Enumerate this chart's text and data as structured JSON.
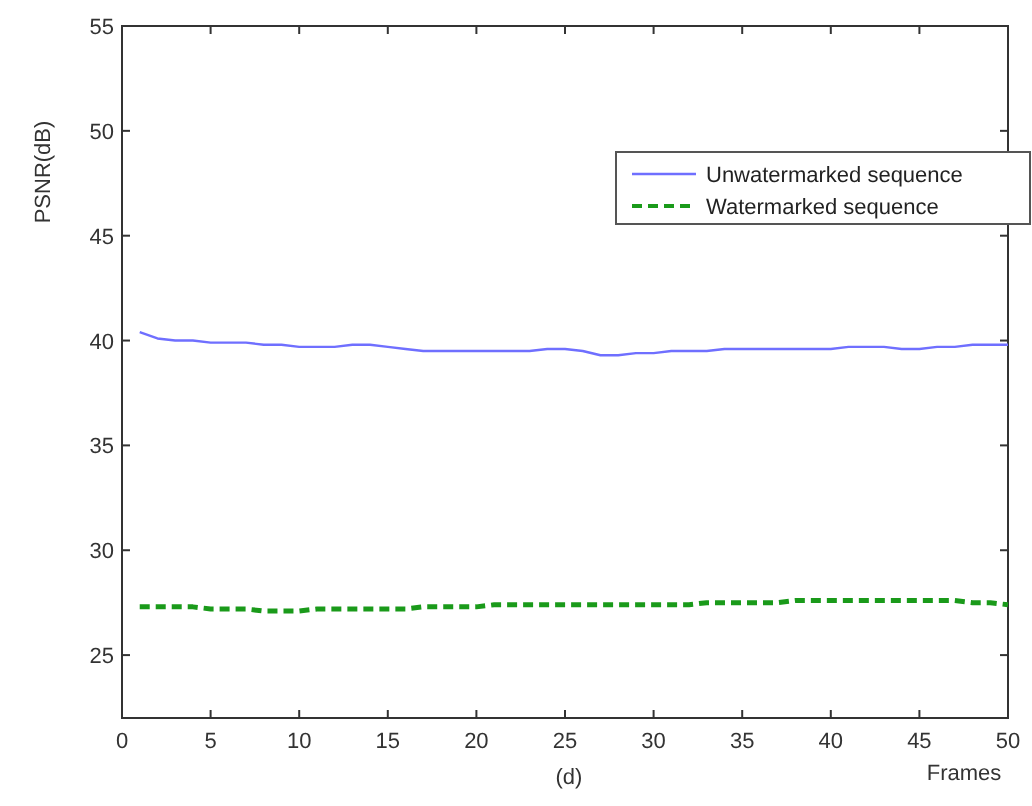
{
  "chart_data": {
    "type": "line",
    "ylabel": "PSNR(dB)",
    "xlabel": "Frames",
    "annotations": [
      "(d)"
    ],
    "x": [
      1,
      2,
      3,
      4,
      5,
      6,
      7,
      8,
      9,
      10,
      11,
      12,
      13,
      14,
      15,
      16,
      17,
      18,
      19,
      20,
      21,
      22,
      23,
      24,
      25,
      26,
      27,
      28,
      29,
      30,
      31,
      32,
      33,
      34,
      35,
      36,
      37,
      38,
      39,
      40,
      41,
      42,
      43,
      44,
      45,
      46,
      47,
      48,
      49,
      50
    ],
    "series": [
      {
        "name": "Unwatermarked sequence",
        "color": "#6f6fff",
        "line_style": "solid",
        "values": [
          40.4,
          40.1,
          40.0,
          40.0,
          39.9,
          39.9,
          39.9,
          39.8,
          39.8,
          39.7,
          39.7,
          39.7,
          39.8,
          39.8,
          39.7,
          39.6,
          39.5,
          39.5,
          39.5,
          39.5,
          39.5,
          39.5,
          39.5,
          39.6,
          39.6,
          39.5,
          39.3,
          39.3,
          39.4,
          39.4,
          39.5,
          39.5,
          39.5,
          39.6,
          39.6,
          39.6,
          39.6,
          39.6,
          39.6,
          39.6,
          39.7,
          39.7,
          39.7,
          39.6,
          39.6,
          39.7,
          39.7,
          39.8,
          39.8,
          39.8
        ]
      },
      {
        "name": "Watermarked sequence",
        "color": "#1a9a1a",
        "line_style": "dashed",
        "values": [
          27.3,
          27.3,
          27.3,
          27.3,
          27.2,
          27.2,
          27.2,
          27.1,
          27.1,
          27.1,
          27.2,
          27.2,
          27.2,
          27.2,
          27.2,
          27.2,
          27.3,
          27.3,
          27.3,
          27.3,
          27.4,
          27.4,
          27.4,
          27.4,
          27.4,
          27.4,
          27.4,
          27.4,
          27.4,
          27.4,
          27.4,
          27.4,
          27.5,
          27.5,
          27.5,
          27.5,
          27.5,
          27.6,
          27.6,
          27.6,
          27.6,
          27.6,
          27.6,
          27.6,
          27.6,
          27.6,
          27.6,
          27.5,
          27.5,
          27.4
        ]
      }
    ],
    "xlim": [
      0,
      50
    ],
    "xticks": [
      0,
      5,
      10,
      15,
      20,
      25,
      30,
      35,
      40,
      45,
      50
    ],
    "ylim": [
      22,
      55
    ],
    "yticks": [
      25,
      30,
      35,
      40,
      45,
      50,
      55
    ],
    "grid": false,
    "legend": "top right"
  }
}
